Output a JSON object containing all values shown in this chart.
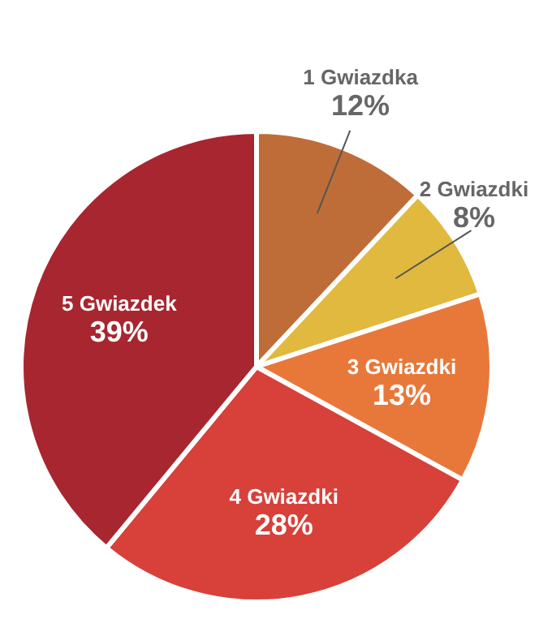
{
  "chart_data": {
    "type": "pie",
    "categories": [
      "1 Gwiazdka",
      "2 Gwiazdki",
      "3 Gwiazdki",
      "4 Gwiazdki",
      "5 Gwiazdek"
    ],
    "values": [
      12,
      8,
      13,
      28,
      39
    ],
    "value_labels": [
      "12%",
      "8%",
      "13%",
      "28%",
      "39%"
    ],
    "colors": [
      "#bf6d38",
      "#e0b93e",
      "#e8783a",
      "#d8403a",
      "#a8262f"
    ]
  }
}
